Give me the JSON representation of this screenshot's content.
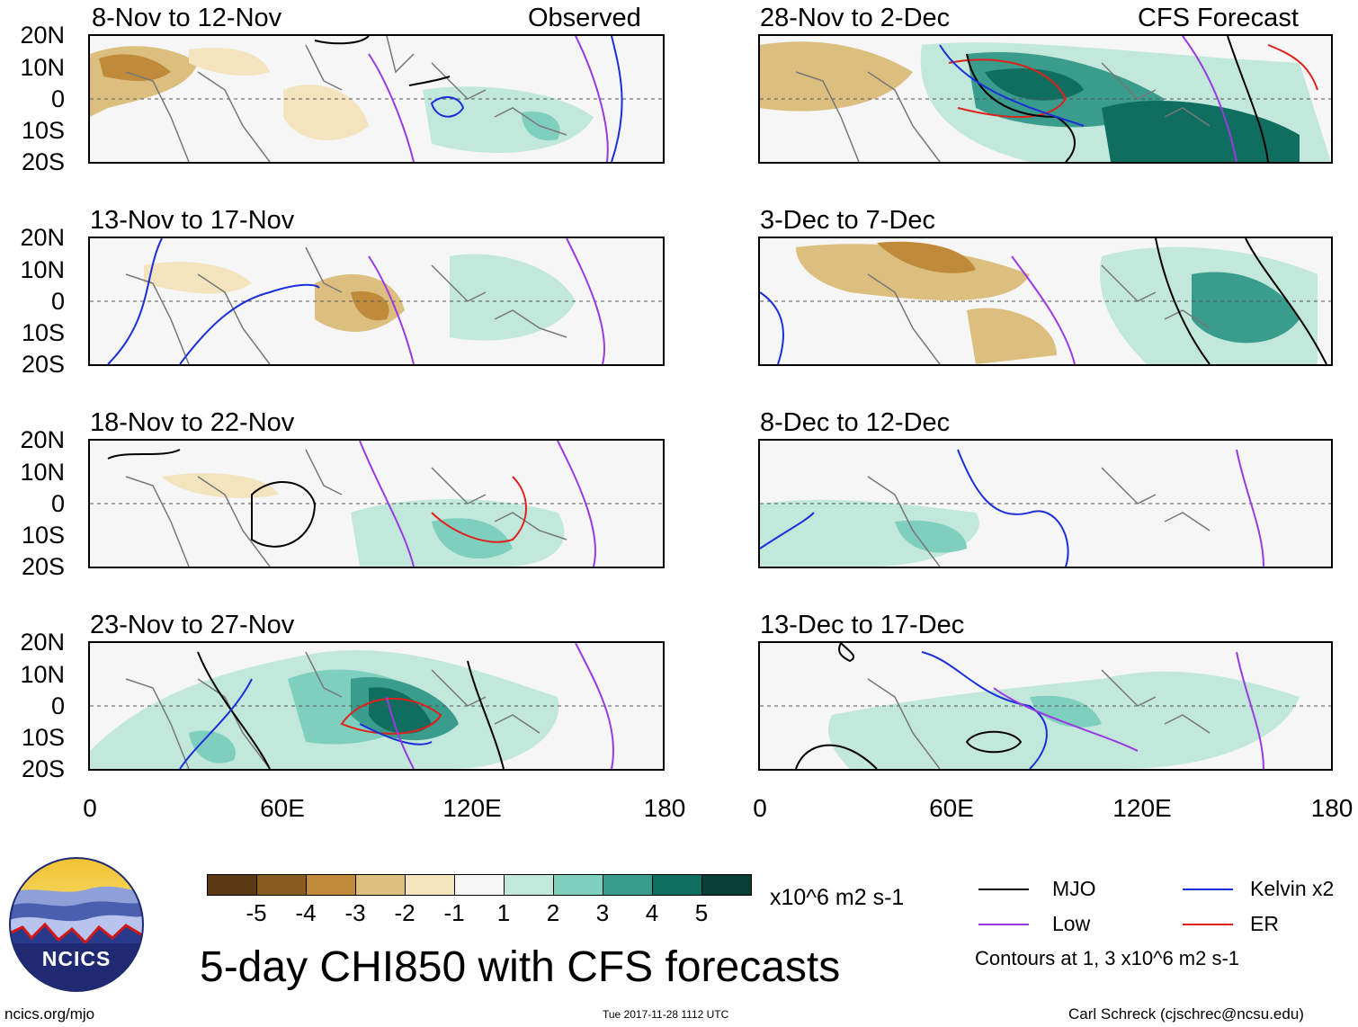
{
  "title": "5-day CHI850 with CFS forecasts",
  "header": {
    "observed": "Observed",
    "forecast": "CFS Forecast"
  },
  "panels_left": [
    {
      "title": "8-Nov to 12-Nov"
    },
    {
      "title": "13-Nov to 17-Nov"
    },
    {
      "title": "18-Nov to 22-Nov"
    },
    {
      "title": "23-Nov to 27-Nov"
    }
  ],
  "panels_right": [
    {
      "title": "28-Nov to 2-Dec"
    },
    {
      "title": "3-Dec to 7-Dec"
    },
    {
      "title": "8-Dec to 12-Dec"
    },
    {
      "title": "13-Dec to 17-Dec"
    }
  ],
  "lat_labels": [
    "20N",
    "10N",
    "0",
    "10S",
    "20S"
  ],
  "lon_labels": [
    "0",
    "60E",
    "120E",
    "180"
  ],
  "colorbar": {
    "labels": [
      "-5",
      "-4",
      "-3",
      "-2",
      "-1",
      "1",
      "2",
      "3",
      "4",
      "5"
    ],
    "colors": [
      "#5a3a12",
      "#8a5a1e",
      "#bf8a3a",
      "#dcbf7e",
      "#f3e4be",
      "#f6f6f6",
      "#c2e8dc",
      "#7fcfbe",
      "#3a9c8c",
      "#0f6e60",
      "#073f36"
    ],
    "units": "x10^6 m2 s-1"
  },
  "legend": {
    "items": [
      {
        "label": "MJO",
        "color": "#000000"
      },
      {
        "label": "Kelvin x2",
        "color": "#1a2fd8"
      },
      {
        "label": "Low",
        "color": "#9a3ae0"
      },
      {
        "label": "ER",
        "color": "#e0201a"
      }
    ],
    "note": "Contours at 1, 3 x10^6 m2 s-1"
  },
  "logo": {
    "text": "NCICS"
  },
  "footer": {
    "url": "ncics.org/mjo",
    "timestamp": "Tue 2017-11-28 1112 UTC",
    "credit": "Carl Schreck (cjschrec@ncsu.edu)"
  }
}
